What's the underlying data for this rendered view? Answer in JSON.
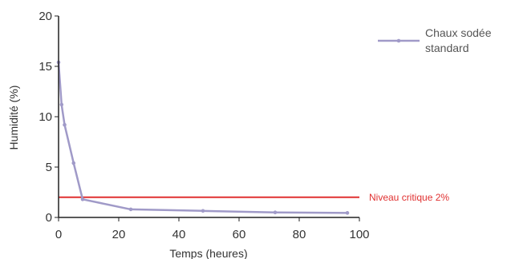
{
  "chart_data": {
    "type": "line",
    "xlabel": "Temps (heures)",
    "ylabel": "Humidité (%)",
    "xlim": [
      0,
      100
    ],
    "ylim": [
      0,
      20
    ],
    "x_ticks": [
      0,
      20,
      40,
      60,
      80,
      100
    ],
    "y_ticks": [
      0,
      5,
      10,
      15,
      20
    ],
    "grid": false,
    "legend_position": "top-right",
    "series": [
      {
        "name": "Chaux sodée standard",
        "name_lines": [
          "Chaux sodée",
          "standard"
        ],
        "color": "#a09ac8",
        "x": [
          0,
          1,
          2,
          5,
          8,
          24,
          48,
          72,
          96
        ],
        "y": [
          15.4,
          11.2,
          9.2,
          5.4,
          1.8,
          0.8,
          0.65,
          0.5,
          0.45
        ]
      }
    ],
    "reference_lines": [
      {
        "label": "Niveau critique 2%",
        "y": 2,
        "color": "#e03030"
      }
    ]
  }
}
